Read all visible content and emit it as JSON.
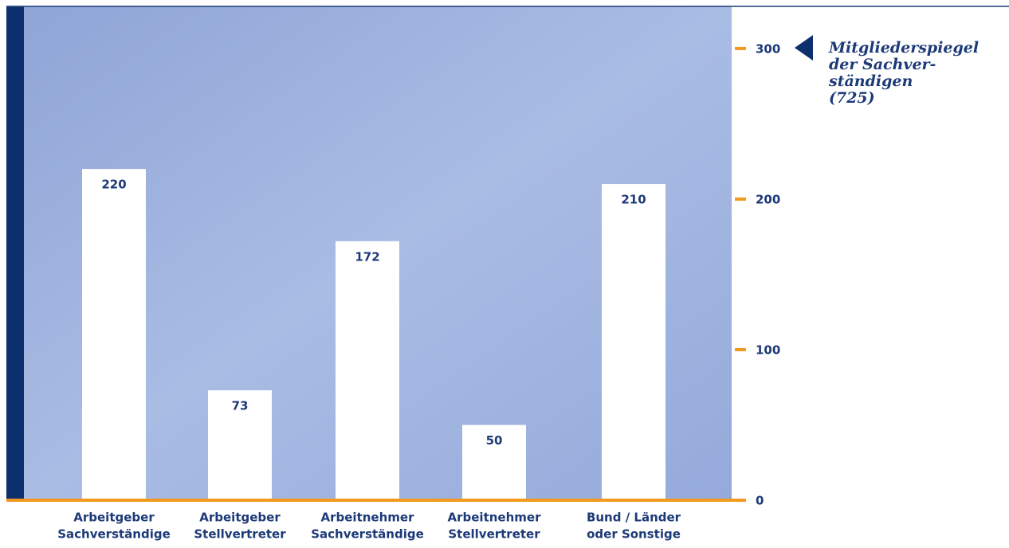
{
  "chart_data": {
    "type": "bar",
    "title": [
      "Mitgliederspiegel",
      "der Sachver-",
      "ständigen",
      "(725)"
    ],
    "categories": [
      [
        "Arbeitgeber",
        "Sachverständige"
      ],
      [
        "Arbeitgeber",
        "Stellvertreter"
      ],
      [
        "Arbeitnehmer",
        "Sachverständige"
      ],
      [
        "Arbeitnehmer",
        "Stellvertreter"
      ],
      [
        "Bund / Länder",
        "oder Sonstige"
      ]
    ],
    "values": [
      220,
      73,
      172,
      50,
      210
    ],
    "color": "#ffffff",
    "ylim": [
      0,
      328
    ],
    "yticks": [
      0,
      100,
      200,
      300
    ]
  }
}
